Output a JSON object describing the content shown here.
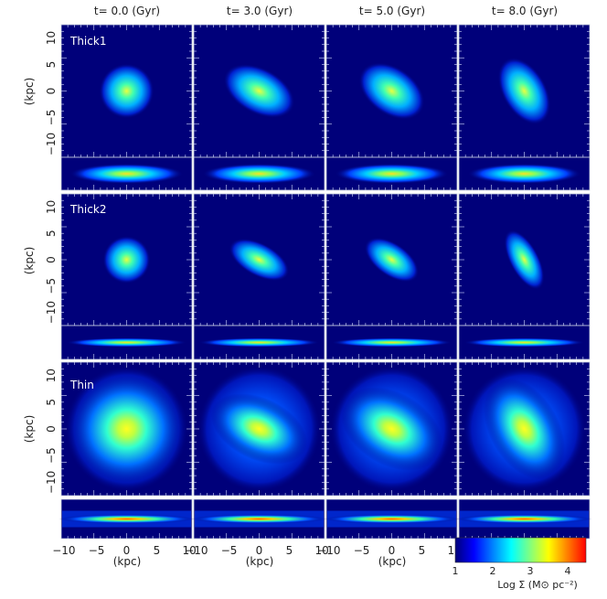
{
  "time_labels": [
    "t= 0.0 (Gyr)",
    "t= 3.0 (Gyr)",
    "t= 5.0 (Gyr)",
    "t= 8.0 (Gyr)"
  ],
  "rows": [
    {
      "label": "Thick1"
    },
    {
      "label": "Thick2"
    },
    {
      "label": "Thin"
    }
  ],
  "y_axis_label": "(kpc)",
  "x_axis_label": "(kpc)",
  "y_ticks": [
    "10",
    "5",
    "0",
    "−5",
    "−10"
  ],
  "x_ticks": [
    "−10",
    "−5",
    "0",
    "5",
    "10"
  ],
  "colorbar": {
    "ticks": [
      "1",
      "2",
      "3",
      "4"
    ],
    "label": "Log Σ (M⊙ pc⁻²)",
    "colors": [
      "#00007a",
      "#0000ff",
      "#0080ff",
      "#00ffff",
      "#80ff80",
      "#ffff00",
      "#ff8000",
      "#ff0000"
    ]
  },
  "colors": {
    "background": "#00007a",
    "frame": "#c8d0e0"
  }
}
